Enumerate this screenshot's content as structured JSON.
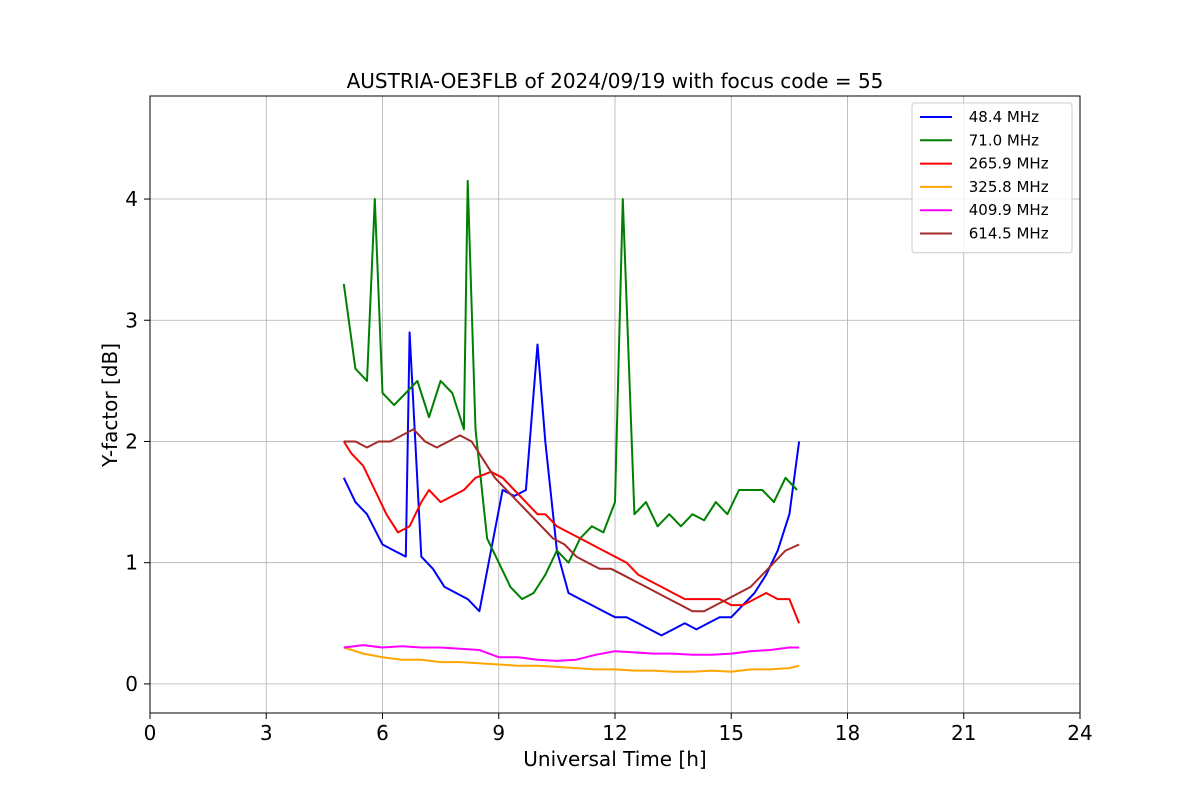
{
  "chart_data": {
    "type": "line",
    "title": "AUSTRIA-OE3FLB of 2024/09/19 with focus code = 55",
    "xlabel": "Universal Time [h]",
    "ylabel": "Y-factor [dB]",
    "xlim": [
      0,
      24
    ],
    "ylim": [
      -0.24,
      4.85
    ],
    "xticks": [
      0,
      3,
      6,
      9,
      12,
      15,
      18,
      21,
      24
    ],
    "xtick_labels": [
      "0",
      "3",
      "6",
      "9",
      "12",
      "15",
      "18",
      "21",
      "24"
    ],
    "yticks": [
      0,
      1,
      2,
      3,
      4
    ],
    "ytick_labels": [
      "0",
      "1",
      "2",
      "3",
      "4"
    ],
    "grid": true,
    "legend_position": "top-right",
    "series": [
      {
        "name": " 48.4 MHz",
        "color": "#0000ff",
        "x": [
          5.0,
          5.3,
          5.6,
          6.0,
          6.3,
          6.6,
          6.7,
          7.0,
          7.3,
          7.6,
          7.9,
          8.2,
          8.5,
          8.8,
          9.1,
          9.4,
          9.7,
          10.0,
          10.2,
          10.5,
          10.8,
          11.1,
          11.4,
          11.7,
          12.0,
          12.3,
          12.6,
          12.9,
          13.2,
          13.5,
          13.8,
          14.1,
          14.4,
          14.7,
          15.0,
          15.3,
          15.6,
          15.9,
          16.2,
          16.5,
          16.75
        ],
        "y": [
          1.7,
          1.5,
          1.4,
          1.15,
          1.1,
          1.05,
          2.9,
          1.05,
          0.95,
          0.8,
          0.75,
          0.7,
          0.6,
          1.1,
          1.6,
          1.55,
          1.6,
          2.8,
          2.0,
          1.1,
          0.75,
          0.7,
          0.65,
          0.6,
          0.55,
          0.55,
          0.5,
          0.45,
          0.4,
          0.45,
          0.5,
          0.45,
          0.5,
          0.55,
          0.55,
          0.65,
          0.75,
          0.9,
          1.1,
          1.4,
          2.0
        ]
      },
      {
        "name": " 71.0 MHz",
        "color": "#008000",
        "x": [
          5.0,
          5.3,
          5.6,
          5.8,
          6.0,
          6.3,
          6.6,
          6.9,
          7.2,
          7.5,
          7.8,
          8.1,
          8.2,
          8.4,
          8.7,
          9.0,
          9.3,
          9.6,
          9.9,
          10.2,
          10.5,
          10.8,
          11.1,
          11.4,
          11.7,
          12.0,
          12.2,
          12.5,
          12.8,
          13.1,
          13.4,
          13.7,
          14.0,
          14.3,
          14.6,
          14.9,
          15.2,
          15.5,
          15.8,
          16.1,
          16.4,
          16.7
        ],
        "y": [
          3.3,
          2.6,
          2.5,
          4.0,
          2.4,
          2.3,
          2.4,
          2.5,
          2.2,
          2.5,
          2.4,
          2.1,
          4.15,
          2.1,
          1.2,
          1.0,
          0.8,
          0.7,
          0.75,
          0.9,
          1.1,
          1.0,
          1.2,
          1.3,
          1.25,
          1.5,
          4.0,
          1.4,
          1.5,
          1.3,
          1.4,
          1.3,
          1.4,
          1.35,
          1.5,
          1.4,
          1.6,
          1.6,
          1.6,
          1.5,
          1.7,
          1.6
        ]
      },
      {
        "name": " 265.9 MHz",
        "color": "#ff0000",
        "x": [
          5.0,
          5.2,
          5.5,
          5.8,
          6.1,
          6.4,
          6.7,
          7.0,
          7.2,
          7.5,
          7.8,
          8.1,
          8.4,
          8.8,
          9.1,
          9.4,
          9.7,
          10.0,
          10.2,
          10.5,
          10.8,
          11.1,
          11.4,
          11.7,
          12.0,
          12.3,
          12.6,
          12.9,
          13.2,
          13.5,
          13.8,
          14.1,
          14.4,
          14.7,
          15.0,
          15.3,
          15.6,
          15.9,
          16.2,
          16.5,
          16.75
        ],
        "y": [
          2.0,
          1.9,
          1.8,
          1.6,
          1.4,
          1.25,
          1.3,
          1.5,
          1.6,
          1.5,
          1.55,
          1.6,
          1.7,
          1.75,
          1.7,
          1.6,
          1.5,
          1.4,
          1.4,
          1.3,
          1.25,
          1.2,
          1.15,
          1.1,
          1.05,
          1.0,
          0.9,
          0.85,
          0.8,
          0.75,
          0.7,
          0.7,
          0.7,
          0.7,
          0.65,
          0.65,
          0.7,
          0.75,
          0.7,
          0.7,
          0.5
        ]
      },
      {
        "name": " 325.8 MHz",
        "color": "#ffa500",
        "x": [
          5.0,
          5.5,
          6.0,
          6.5,
          7.0,
          7.5,
          8.0,
          8.5,
          9.0,
          9.5,
          10.0,
          10.5,
          11.0,
          11.5,
          12.0,
          12.5,
          13.0,
          13.5,
          14.0,
          14.5,
          15.0,
          15.5,
          16.0,
          16.5,
          16.75
        ],
        "y": [
          0.3,
          0.25,
          0.22,
          0.2,
          0.2,
          0.18,
          0.18,
          0.17,
          0.16,
          0.15,
          0.15,
          0.14,
          0.13,
          0.12,
          0.12,
          0.11,
          0.11,
          0.1,
          0.1,
          0.11,
          0.1,
          0.12,
          0.12,
          0.13,
          0.15
        ]
      },
      {
        "name": " 409.9 MHz",
        "color": "#ff00ff",
        "x": [
          5.0,
          5.5,
          6.0,
          6.5,
          7.0,
          7.5,
          8.0,
          8.5,
          9.0,
          9.5,
          10.0,
          10.5,
          11.0,
          11.5,
          12.0,
          12.5,
          13.0,
          13.5,
          14.0,
          14.5,
          15.0,
          15.5,
          16.0,
          16.5,
          16.75
        ],
        "y": [
          0.3,
          0.32,
          0.3,
          0.31,
          0.3,
          0.3,
          0.29,
          0.28,
          0.22,
          0.22,
          0.2,
          0.19,
          0.2,
          0.24,
          0.27,
          0.26,
          0.25,
          0.25,
          0.24,
          0.24,
          0.25,
          0.27,
          0.28,
          0.3,
          0.3
        ]
      },
      {
        "name": " 614.5 MHz",
        "color": "#a52a2a",
        "x": [
          5.0,
          5.3,
          5.6,
          5.9,
          6.2,
          6.5,
          6.8,
          7.1,
          7.4,
          7.7,
          8.0,
          8.3,
          8.6,
          8.9,
          9.2,
          9.5,
          9.8,
          10.1,
          10.4,
          10.7,
          11.0,
          11.3,
          11.6,
          11.9,
          12.2,
          12.5,
          12.8,
          13.1,
          13.4,
          13.7,
          14.0,
          14.3,
          14.6,
          14.9,
          15.2,
          15.5,
          15.8,
          16.1,
          16.4,
          16.75
        ],
        "y": [
          2.0,
          2.0,
          1.95,
          2.0,
          2.0,
          2.05,
          2.1,
          2.0,
          1.95,
          2.0,
          2.05,
          2.0,
          1.85,
          1.7,
          1.6,
          1.5,
          1.4,
          1.3,
          1.2,
          1.15,
          1.05,
          1.0,
          0.95,
          0.95,
          0.9,
          0.85,
          0.8,
          0.75,
          0.7,
          0.65,
          0.6,
          0.6,
          0.65,
          0.7,
          0.75,
          0.8,
          0.9,
          1.0,
          1.1,
          1.15
        ]
      }
    ]
  }
}
